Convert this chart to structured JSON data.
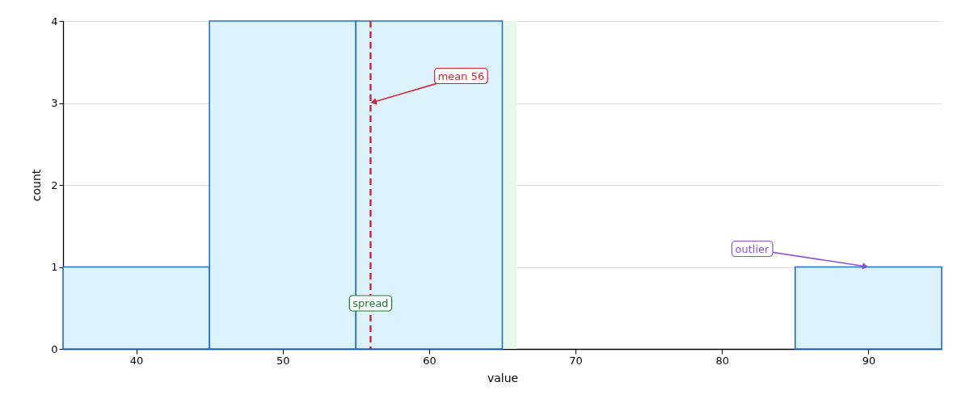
{
  "chart_data": {
    "type": "histogram",
    "xlabel": "value",
    "ylabel": "count",
    "bins": [
      35,
      45,
      55,
      65,
      75,
      85,
      95
    ],
    "values": [
      1,
      4,
      4,
      0,
      0,
      1
    ],
    "color": "#dcf2fc",
    "xlim": [
      35,
      95
    ],
    "xticks": [
      40,
      50,
      60,
      70,
      80,
      90
    ],
    "ylim": [
      0,
      4
    ],
    "yticks": [
      0,
      1,
      2,
      3,
      4
    ],
    "grid": "y",
    "ref_lines": [
      {
        "axis": "x",
        "value": 56,
        "color": "#d62030",
        "line_style": "dashed"
      }
    ],
    "bands": [
      {
        "axis": "x",
        "from": 46,
        "to": 66,
        "label": "spread",
        "color": "#e6f9e8"
      }
    ],
    "annotations": [
      {
        "text": "mean 56",
        "x": 56,
        "y": 3
      },
      {
        "text": "outlier",
        "x": 90,
        "y": 1
      }
    ]
  }
}
